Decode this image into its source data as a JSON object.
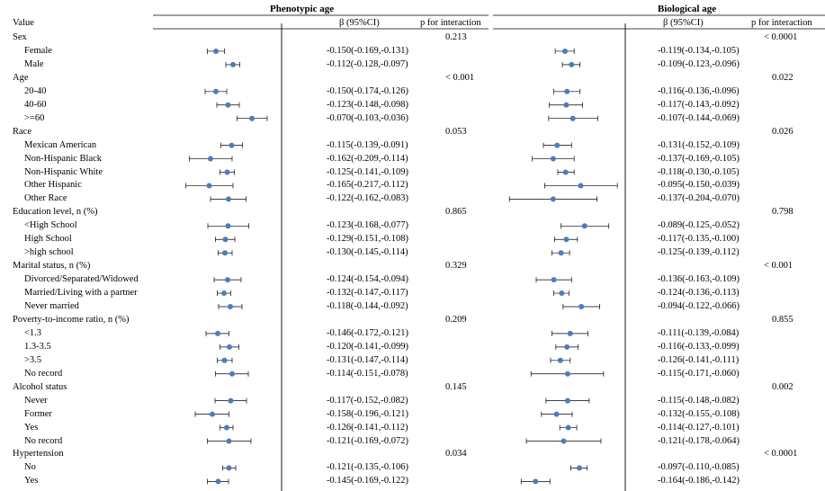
{
  "headers": {
    "value": "Value",
    "phenotypic": "Phenotypic age",
    "biological": "Biological age",
    "beta": "β (95%CI)",
    "p_interaction": "p for interaction"
  },
  "colors": {
    "marker": "#4a7ebb",
    "line": "#000000"
  },
  "scale_note": "x positions are beta values; plot axis range chosen per panel",
  "rows": [
    {
      "label": "Sex",
      "type": "group",
      "p_pheno": "0.213",
      "p_bio": "< 0.0001"
    },
    {
      "label": "Female",
      "type": "item",
      "pheno": {
        "est": -0.15,
        "lo": -0.169,
        "hi": -0.131,
        "text": "-0.150(-0.169,-0.131)"
      },
      "bio": {
        "est": -0.119,
        "lo": -0.134,
        "hi": -0.105,
        "text": "-0.119(-0.134,-0.105)"
      }
    },
    {
      "label": "Male",
      "type": "item",
      "pheno": {
        "est": -0.112,
        "lo": -0.128,
        "hi": -0.097,
        "text": "-0.112(-0.128,-0.097)"
      },
      "bio": {
        "est": -0.109,
        "lo": -0.123,
        "hi": -0.096,
        "text": "-0.109(-0.123,-0.096)"
      }
    },
    {
      "label": "Age",
      "type": "group",
      "p_pheno": "< 0.001",
      "p_bio": "0.022"
    },
    {
      "label": "20-40",
      "type": "item",
      "pheno": {
        "est": -0.15,
        "lo": -0.174,
        "hi": -0.126,
        "text": "-0.150(-0.174,-0.126)"
      },
      "bio": {
        "est": -0.116,
        "lo": -0.136,
        "hi": -0.096,
        "text": "-0.116(-0.136,-0.096)"
      }
    },
    {
      "label": "40-60",
      "type": "item",
      "pheno": {
        "est": -0.123,
        "lo": -0.148,
        "hi": -0.098,
        "text": "-0.123(-0.148,-0.098)"
      },
      "bio": {
        "est": -0.117,
        "lo": -0.143,
        "hi": -0.092,
        "text": "-0.117(-0.143,-0.092)"
      }
    },
    {
      "label": ">=60",
      "type": "item",
      "pheno": {
        "est": -0.07,
        "lo": -0.103,
        "hi": -0.036,
        "text": "-0.070(-0.103,-0.036)"
      },
      "bio": {
        "est": -0.107,
        "lo": -0.144,
        "hi": -0.069,
        "text": "-0.107(-0.144,-0.069)"
      }
    },
    {
      "label": "Race",
      "type": "group",
      "p_pheno": "0.053",
      "p_bio": "0.026"
    },
    {
      "label": "Mexican American",
      "type": "item",
      "pheno": {
        "est": -0.115,
        "lo": -0.139,
        "hi": -0.091,
        "text": "-0.115(-0.139,-0.091)"
      },
      "bio": {
        "est": -0.131,
        "lo": -0.152,
        "hi": -0.109,
        "text": "-0.131(-0.152,-0.109)"
      }
    },
    {
      "label": "Non-Hispanic Black",
      "type": "item",
      "pheno": {
        "est": -0.162,
        "lo": -0.209,
        "hi": -0.114,
        "text": "-0.162(-0.209,-0.114)"
      },
      "bio": {
        "est": -0.137,
        "lo": -0.169,
        "hi": -0.105,
        "text": "-0.137(-0.169,-0.105)"
      }
    },
    {
      "label": "Non-Hispanic White",
      "type": "item",
      "pheno": {
        "est": -0.125,
        "lo": -0.141,
        "hi": -0.109,
        "text": "-0.125(-0.141,-0.109)"
      },
      "bio": {
        "est": -0.118,
        "lo": -0.13,
        "hi": -0.105,
        "text": "-0.118(-0.130,-0.105)"
      }
    },
    {
      "label": "Other Hispanic",
      "type": "item",
      "pheno": {
        "est": -0.165,
        "lo": -0.217,
        "hi": -0.112,
        "text": "-0.165(-0.217,-0.112)"
      },
      "bio": {
        "est": -0.095,
        "lo": -0.15,
        "hi": -0.039,
        "text": "-0.095(-0.150,-0.039)"
      }
    },
    {
      "label": "Other Race",
      "type": "item",
      "pheno": {
        "est": -0.122,
        "lo": -0.162,
        "hi": -0.083,
        "text": "-0.122(-0.162,-0.083)"
      },
      "bio": {
        "est": -0.137,
        "lo": -0.204,
        "hi": -0.07,
        "text": "-0.137(-0.204,-0.070)"
      }
    },
    {
      "label": "Education level, n (%)",
      "type": "group",
      "p_pheno": "0.865",
      "p_bio": "0.798"
    },
    {
      "label": "<High School",
      "type": "item",
      "pheno": {
        "est": -0.123,
        "lo": -0.168,
        "hi": -0.077,
        "text": "-0.123(-0.168,-0.077)"
      },
      "bio": {
        "est": -0.089,
        "lo": -0.125,
        "hi": -0.052,
        "text": "-0.089(-0.125,-0.052)"
      }
    },
    {
      "label": "High School",
      "type": "item",
      "pheno": {
        "est": -0.129,
        "lo": -0.151,
        "hi": -0.108,
        "text": "-0.129(-0.151,-0.108)"
      },
      "bio": {
        "est": -0.117,
        "lo": -0.135,
        "hi": -0.1,
        "text": "-0.117(-0.135,-0.100)"
      }
    },
    {
      "label": ">high school",
      "type": "item",
      "pheno": {
        "est": -0.13,
        "lo": -0.145,
        "hi": -0.114,
        "text": "-0.130(-0.145,-0.114)"
      },
      "bio": {
        "est": -0.125,
        "lo": -0.139,
        "hi": -0.112,
        "text": "-0.125(-0.139,-0.112)"
      }
    },
    {
      "label": "Marital status, n (%)",
      "type": "group",
      "p_pheno": "0.329",
      "p_bio": "< 0.001"
    },
    {
      "label": "Divorced/Separated/Widowed",
      "type": "item",
      "pheno": {
        "est": -0.124,
        "lo": -0.154,
        "hi": -0.094,
        "text": "-0.124(-0.154,-0.094)"
      },
      "bio": {
        "est": -0.136,
        "lo": -0.163,
        "hi": -0.109,
        "text": "-0.136(-0.163,-0.109)"
      }
    },
    {
      "label": "Married/Living with a partner",
      "type": "item",
      "pheno": {
        "est": -0.132,
        "lo": -0.147,
        "hi": -0.117,
        "text": "-0.132(-0.147,-0.117)"
      },
      "bio": {
        "est": -0.124,
        "lo": -0.136,
        "hi": -0.113,
        "text": "-0.124(-0.136,-0.113)"
      }
    },
    {
      "label": "Never married",
      "type": "item",
      "pheno": {
        "est": -0.118,
        "lo": -0.144,
        "hi": -0.092,
        "text": "-0.118(-0.144,-0.092)"
      },
      "bio": {
        "est": -0.094,
        "lo": -0.122,
        "hi": -0.066,
        "text": "-0.094(-0.122,-0.066)"
      }
    },
    {
      "label": "Poverty-to-income ratio, n (%)",
      "type": "group",
      "p_pheno": "0.209",
      "p_bio": "0.855"
    },
    {
      "label": "<1.3",
      "type": "item",
      "pheno": {
        "est": -0.146,
        "lo": -0.172,
        "hi": -0.121,
        "text": "-0.146(-0.172,-0.121)"
      },
      "bio": {
        "est": -0.111,
        "lo": -0.139,
        "hi": -0.084,
        "text": "-0.111(-0.139,-0.084)"
      }
    },
    {
      "label": "1.3-3.5",
      "type": "item",
      "pheno": {
        "est": -0.12,
        "lo": -0.141,
        "hi": -0.099,
        "text": "-0.120(-0.141,-0.099)"
      },
      "bio": {
        "est": -0.116,
        "lo": -0.133,
        "hi": -0.099,
        "text": "-0.116(-0.133,-0.099)"
      }
    },
    {
      "label": ">3.5",
      "type": "item",
      "pheno": {
        "est": -0.131,
        "lo": -0.147,
        "hi": -0.114,
        "text": "-0.131(-0.147,-0.114)"
      },
      "bio": {
        "est": -0.126,
        "lo": -0.141,
        "hi": -0.111,
        "text": "-0.126(-0.141,-0.111)"
      }
    },
    {
      "label": "No record",
      "type": "item",
      "pheno": {
        "est": -0.114,
        "lo": -0.151,
        "hi": -0.078,
        "text": "-0.114(-0.151,-0.078)"
      },
      "bio": {
        "est": -0.115,
        "lo": -0.171,
        "hi": -0.06,
        "text": "-0.115(-0.171,-0.060)"
      }
    },
    {
      "label": "Alcohol status",
      "type": "group",
      "p_pheno": "0.145",
      "p_bio": "0.002"
    },
    {
      "label": "Never",
      "type": "item",
      "pheno": {
        "est": -0.117,
        "lo": -0.152,
        "hi": -0.082,
        "text": "-0.117(-0.152,-0.082)"
      },
      "bio": {
        "est": -0.115,
        "lo": -0.148,
        "hi": -0.082,
        "text": "-0.115(-0.148,-0.082)"
      }
    },
    {
      "label": "Former",
      "type": "item",
      "pheno": {
        "est": -0.158,
        "lo": -0.196,
        "hi": -0.121,
        "text": "-0.158(-0.196,-0.121)"
      },
      "bio": {
        "est": -0.132,
        "lo": -0.155,
        "hi": -0.108,
        "text": "-0.132(-0.155,-0.108)"
      }
    },
    {
      "label": "Yes",
      "type": "item",
      "pheno": {
        "est": -0.126,
        "lo": -0.141,
        "hi": -0.112,
        "text": "-0.126(-0.141,-0.112)"
      },
      "bio": {
        "est": -0.114,
        "lo": -0.127,
        "hi": -0.101,
        "text": "-0.114(-0.127,-0.101)"
      }
    },
    {
      "label": "No record",
      "type": "item",
      "pheno": {
        "est": -0.121,
        "lo": -0.169,
        "hi": -0.072,
        "text": "-0.121(-0.169,-0.072)"
      },
      "bio": {
        "est": -0.121,
        "lo": -0.178,
        "hi": -0.064,
        "text": "-0.121(-0.178,-0.064)"
      }
    },
    {
      "label": "Hypertension",
      "type": "group",
      "p_pheno": "0.034",
      "p_bio": "< 0.0001"
    },
    {
      "label": "No",
      "type": "item",
      "pheno": {
        "est": -0.121,
        "lo": -0.135,
        "hi": -0.106,
        "text": "-0.121(-0.135,-0.106)"
      },
      "bio": {
        "est": -0.097,
        "lo": -0.11,
        "hi": -0.085,
        "text": "-0.097(-0.110,-0.085)"
      }
    },
    {
      "label": "Yes",
      "type": "item",
      "pheno": {
        "est": -0.145,
        "lo": -0.169,
        "hi": -0.122,
        "text": "-0.145(-0.169,-0.122)"
      },
      "bio": {
        "est": -0.164,
        "lo": -0.186,
        "hi": -0.142,
        "text": "-0.164(-0.186,-0.142)"
      }
    }
  ],
  "chart_data": [
    {
      "type": "forest",
      "title": "Phenotypic age",
      "xlim": [
        -0.27,
        -0.01
      ]
    },
    {
      "type": "forest",
      "title": "Biological age",
      "xlim": [
        -0.24,
        -0.02
      ]
    }
  ]
}
